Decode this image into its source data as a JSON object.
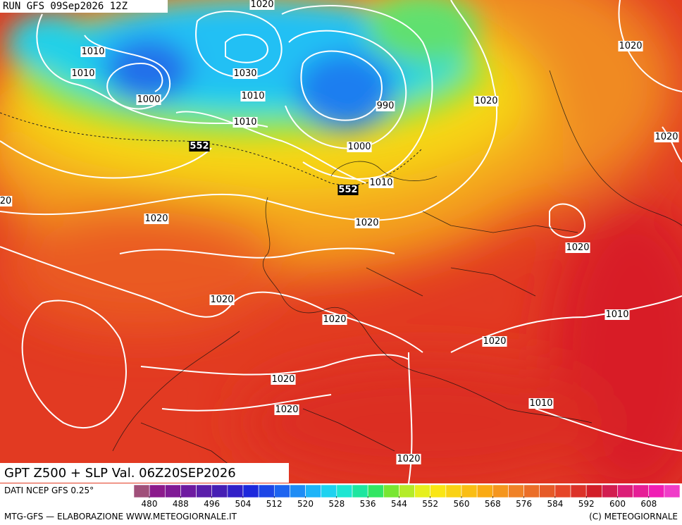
{
  "header": {
    "run": "RUN GFS 09Sep2026 12Z"
  },
  "map": {
    "isobar_labels": [
      "1020",
      "1010",
      "1010",
      "1000",
      "1030",
      "1010",
      "1010",
      "990",
      "1000",
      "552",
      "552",
      "1010",
      "1020",
      "1020",
      "1020",
      "1020",
      "20",
      "1020",
      "1020",
      "1020",
      "1020",
      "1010",
      "1020",
      "1020",
      "1010",
      "1020",
      "1020"
    ]
  },
  "footer": {
    "title": "GPT Z500 + SLP Val. 06Z20SEP2026",
    "source": "DATI NCEP GFS 0.25°",
    "credit": "MTG-GFS — ELABORAZIONE WWW.METEOGIORNALE.IT",
    "copyright": "(C) METEOGIORNALE"
  },
  "colorbar": {
    "ticks": [
      480,
      488,
      496,
      504,
      512,
      520,
      528,
      536,
      544,
      552,
      560,
      568,
      576,
      584,
      592,
      600,
      608
    ],
    "colors": [
      "#a0507a",
      "#8c1a8c",
      "#801a96",
      "#6e1aa0",
      "#5a1eaa",
      "#461eb4",
      "#3220c8",
      "#1e28dc",
      "#1e46e6",
      "#1e64f0",
      "#1e8cf5",
      "#1eb4f8",
      "#1ed2f0",
      "#1ee6d2",
      "#1ee6a0",
      "#32e664",
      "#78e632",
      "#b4ec28",
      "#e6f01e",
      "#fae614",
      "#fad214",
      "#fabe14",
      "#faaa14",
      "#f5961e",
      "#f08228",
      "#eb6e28",
      "#e65a28",
      "#e64628",
      "#dc3228",
      "#d21e28",
      "#d21e50",
      "#dc1e78",
      "#e61e96",
      "#f01eb4",
      "#f03cc8"
    ]
  }
}
